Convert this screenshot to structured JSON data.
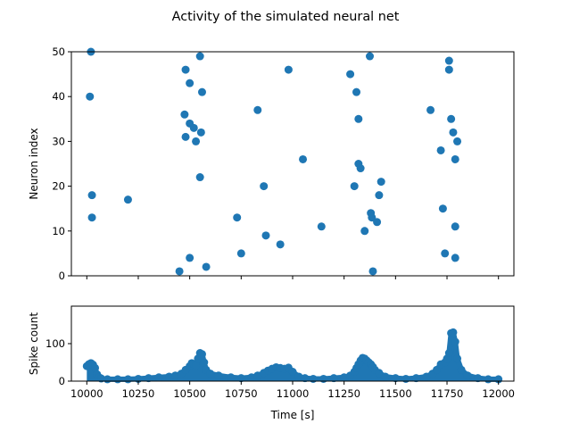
{
  "figure": {
    "title": "Activity of the simulated neural net"
  },
  "chart_data": [
    {
      "type": "scatter",
      "ylabel": "Neuron index",
      "xlabel": "",
      "xlim": [
        9925,
        12075
      ],
      "ylim": [
        0,
        50
      ],
      "yticks": [
        0,
        10,
        20,
        30,
        40,
        50
      ],
      "xticks": [
        10000,
        10250,
        10500,
        10750,
        11000,
        11250,
        11500,
        11750,
        12000
      ],
      "show_xtick_labels": false,
      "color": "#1f77b4",
      "points": [
        [
          10020,
          50
        ],
        [
          10015,
          40
        ],
        [
          10025,
          18
        ],
        [
          10025,
          13
        ],
        [
          10200,
          17
        ],
        [
          10480,
          46
        ],
        [
          10500,
          43
        ],
        [
          10550,
          49
        ],
        [
          10560,
          41
        ],
        [
          10475,
          36
        ],
        [
          10500,
          34
        ],
        [
          10520,
          33
        ],
        [
          10555,
          32
        ],
        [
          10480,
          31
        ],
        [
          10530,
          30
        ],
        [
          10550,
          22
        ],
        [
          10500,
          4
        ],
        [
          10450,
          1
        ],
        [
          10580,
          2
        ],
        [
          10730,
          13
        ],
        [
          10750,
          5
        ],
        [
          10830,
          37
        ],
        [
          10860,
          20
        ],
        [
          10870,
          9
        ],
        [
          10940,
          7
        ],
        [
          10980,
          46
        ],
        [
          11050,
          26
        ],
        [
          11140,
          11
        ],
        [
          11280,
          45
        ],
        [
          11300,
          20
        ],
        [
          11310,
          41
        ],
        [
          11320,
          35
        ],
        [
          11320,
          25
        ],
        [
          11330,
          24
        ],
        [
          11350,
          10
        ],
        [
          11375,
          49
        ],
        [
          11380,
          14
        ],
        [
          11385,
          13
        ],
        [
          11390,
          1
        ],
        [
          11410,
          12
        ],
        [
          11420,
          18
        ],
        [
          11430,
          21
        ],
        [
          11670,
          37
        ],
        [
          11720,
          28
        ],
        [
          11730,
          15
        ],
        [
          11740,
          5
        ],
        [
          11760,
          48
        ],
        [
          11760,
          46
        ],
        [
          11770,
          35
        ],
        [
          11780,
          32
        ],
        [
          11790,
          26
        ],
        [
          11790,
          11
        ],
        [
          11790,
          4
        ],
        [
          11800,
          30
        ]
      ]
    },
    {
      "type": "area",
      "ylabel": "Spike count",
      "xlabel": "Time [s]",
      "xlim": [
        9925,
        12075
      ],
      "ylim": [
        0,
        200
      ],
      "yticks": [
        0,
        100
      ],
      "xticks": [
        10000,
        10250,
        10500,
        10750,
        11000,
        11250,
        11500,
        11750,
        12000
      ],
      "color": "#1f77b4",
      "x": [
        10000,
        10010,
        10020,
        10030,
        10040,
        10050,
        10060,
        10070,
        10100,
        10150,
        10200,
        10250,
        10300,
        10350,
        10400,
        10430,
        10460,
        10480,
        10500,
        10510,
        10520,
        10530,
        10540,
        10550,
        10560,
        10570,
        10580,
        10600,
        10640,
        10700,
        10750,
        10800,
        10830,
        10860,
        10880,
        10900,
        10920,
        10940,
        10960,
        10980,
        11000,
        11030,
        11060,
        11100,
        11150,
        11200,
        11250,
        11280,
        11300,
        11310,
        11320,
        11330,
        11340,
        11350,
        11360,
        11370,
        11380,
        11390,
        11400,
        11420,
        11450,
        11500,
        11550,
        11600,
        11650,
        11680,
        11700,
        11720,
        11740,
        11750,
        11760,
        11770,
        11780,
        11790,
        11800,
        11820,
        11850,
        11900,
        11950,
        12000
      ],
      "values": [
        40,
        45,
        48,
        44,
        35,
        18,
        10,
        7,
        5,
        5,
        5,
        6,
        8,
        10,
        12,
        15,
        20,
        30,
        40,
        48,
        45,
        42,
        60,
        75,
        72,
        50,
        30,
        20,
        15,
        10,
        8,
        10,
        15,
        22,
        28,
        33,
        37,
        35,
        33,
        36,
        25,
        12,
        8,
        6,
        6,
        8,
        10,
        15,
        25,
        35,
        45,
        55,
        62,
        60,
        55,
        50,
        45,
        38,
        30,
        22,
        12,
        8,
        6,
        8,
        12,
        20,
        30,
        45,
        50,
        60,
        75,
        128,
        130,
        105,
        60,
        30,
        15,
        8,
        5,
        5
      ]
    }
  ]
}
